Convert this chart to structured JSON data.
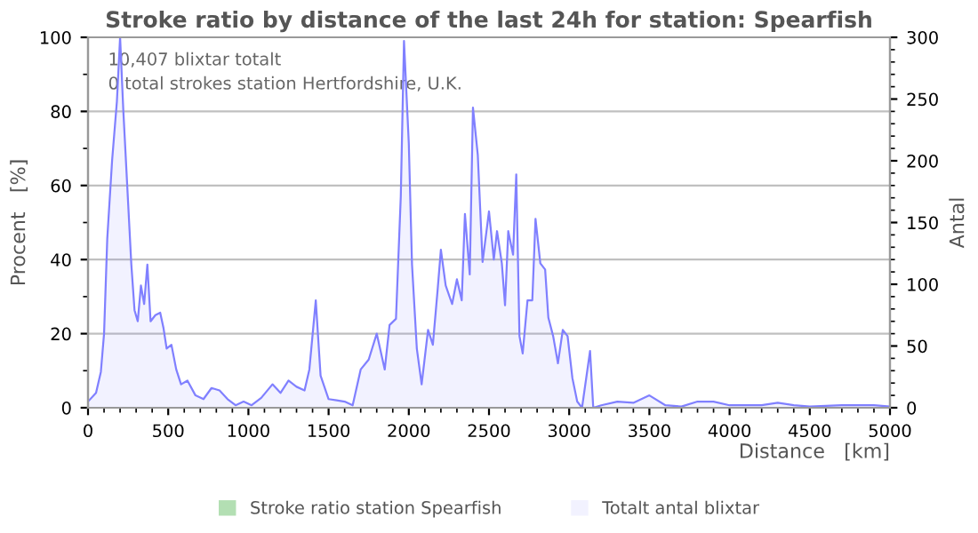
{
  "chart_data": {
    "type": "area",
    "title": "Stroke ratio by distance of the last 24h for station: Spearfish",
    "xlabel": "Distance   [km]",
    "ylabel": "Procent   [%]",
    "y2label": "Antal",
    "annotations": [
      "10,407 blixtar totalt",
      "0 total strokes station Hertfordshire, U.K."
    ],
    "xlim": [
      0,
      5000
    ],
    "xticks": [
      0,
      500,
      1000,
      1500,
      2000,
      2500,
      3000,
      3500,
      4000,
      4500,
      5000
    ],
    "ylim": [
      0,
      100
    ],
    "yticks": [
      0,
      20,
      40,
      60,
      80,
      100
    ],
    "y2lim": [
      0,
      300
    ],
    "y2ticks": [
      0,
      50,
      100,
      150,
      200,
      250,
      300
    ],
    "grid": "y",
    "legend": "bottom",
    "series": [
      {
        "name": "Stroke ratio station Spearfish",
        "color": "#b3dfb3"
      },
      {
        "name": "Totalt antal blixtar",
        "color": "#8080ff",
        "axis": "y2",
        "x": [
          0,
          50,
          80,
          100,
          120,
          150,
          180,
          200,
          220,
          250,
          270,
          290,
          310,
          330,
          350,
          370,
          390,
          420,
          450,
          470,
          490,
          520,
          550,
          580,
          620,
          670,
          720,
          770,
          820,
          870,
          920,
          970,
          1020,
          1080,
          1150,
          1200,
          1250,
          1300,
          1350,
          1380,
          1420,
          1450,
          1500,
          1550,
          1600,
          1650,
          1700,
          1750,
          1800,
          1850,
          1880,
          1920,
          1950,
          1970,
          2000,
          2020,
          2050,
          2080,
          2120,
          2150,
          2180,
          2200,
          2230,
          2270,
          2300,
          2330,
          2350,
          2380,
          2400,
          2430,
          2460,
          2500,
          2530,
          2550,
          2580,
          2600,
          2620,
          2650,
          2670,
          2690,
          2710,
          2740,
          2770,
          2790,
          2820,
          2850,
          2870,
          2900,
          2930,
          2960,
          2990,
          3020,
          3050,
          3080,
          3130,
          3150,
          3200,
          3300,
          3400,
          3500,
          3600,
          3700,
          3800,
          3900,
          4000,
          4200,
          4300,
          4400,
          4500,
          4700,
          4900,
          5000
        ],
        "values": [
          5,
          12,
          29,
          60,
          137,
          200,
          248,
          300,
          241,
          166,
          116,
          79,
          70,
          99,
          84,
          116,
          70,
          75,
          77,
          65,
          48,
          51,
          31,
          19,
          22,
          10,
          7,
          16,
          14,
          7,
          2,
          5,
          2,
          8,
          19,
          12,
          22,
          17,
          14,
          31,
          87,
          26,
          7,
          6,
          5,
          2,
          31,
          39,
          60,
          31,
          67,
          72,
          171,
          297,
          214,
          116,
          48,
          19,
          63,
          51,
          96,
          128,
          99,
          84,
          104,
          87,
          157,
          108,
          243,
          205,
          118,
          159,
          120,
          143,
          117,
          83,
          143,
          124,
          189,
          58,
          44,
          87,
          87,
          153,
          117,
          112,
          73,
          58,
          36,
          63,
          58,
          24,
          5,
          0,
          46,
          0,
          2,
          5,
          4,
          10,
          2,
          1,
          5,
          5,
          2,
          2,
          4,
          2,
          1,
          2,
          2,
          1
        ]
      }
    ]
  }
}
